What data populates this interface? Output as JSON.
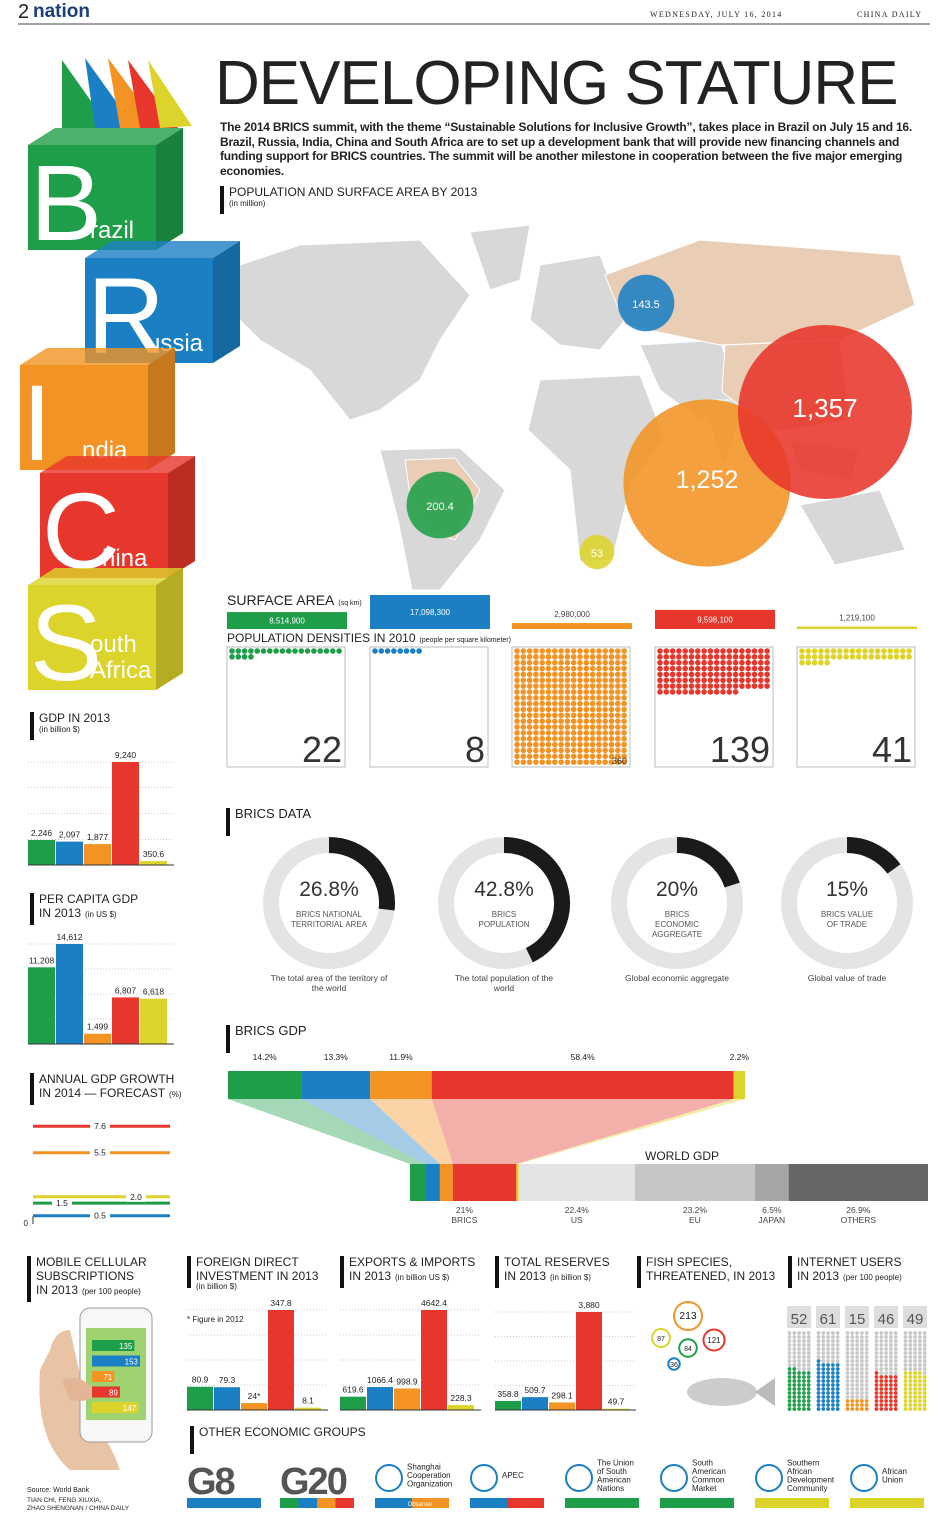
{
  "header": {
    "page": "2",
    "section": "nation",
    "date": "WEDNESDAY, JULY 16, 2014",
    "paper": "CHINA DAILY"
  },
  "colors": [
    "#1f9e49",
    "#1b7fc4",
    "#f39323",
    "#e7362b",
    "#dcd42b"
  ],
  "brics": [
    {
      "letter": "B",
      "rest": [
        "razil"
      ]
    },
    {
      "letter": "R",
      "rest": [
        "ussia"
      ]
    },
    {
      "letter": "I",
      "rest": [
        "ndia"
      ]
    },
    {
      "letter": "C",
      "rest": [
        "hina"
      ]
    },
    {
      "letter": "S",
      "rest": [
        "outh",
        "Africa"
      ]
    }
  ],
  "title": "DEVELOPING STATURE",
  "intro": "The 2014 BRICS summit, with the theme “Sustainable Solutions for Inclusive Growth”, takes place in Brazil on July 15 and 16. Brazil, Russia, India, China and South Africa are to set up a development bank that will provide new financing channels and funding support for BRICS countries. The summit will be another milestone in cooperation between the five major emerging economies.",
  "population": {
    "title": "POPULATION AND SURFACE AREA  BY 2013",
    "unit": "(in million)",
    "values": [
      200.4,
      143.5,
      1252,
      1357,
      53
    ],
    "value_labels": [
      "200.4",
      "143.5",
      "1,252",
      "1,357",
      "53"
    ]
  },
  "surface_area": {
    "title": "SURFACE AREA",
    "unit": "(sq km)",
    "values": [
      8514900,
      17098300,
      2980000,
      9598100,
      1219100
    ],
    "value_labels": [
      "8,514,900",
      "17,098,300",
      "2,980,000",
      "9,598,100",
      "1,219,100"
    ]
  },
  "densities": {
    "title": "POPULATION DENSITIES IN 2010",
    "unit": "(people per square kilometer)",
    "values": [
      22,
      8,
      360,
      139,
      41
    ]
  },
  "gdp": {
    "title": [
      "GDP IN 2013"
    ],
    "unit": "(in billion $)",
    "values": [
      2246,
      2097,
      1877,
      9240,
      350.6
    ],
    "value_labels": [
      "2,246",
      "2,097",
      "1,877",
      "9,240",
      "350.6"
    ]
  },
  "per_capita_gdp": {
    "title": [
      "PER CAPITA GDP",
      "IN 2013"
    ],
    "unit": "(in US $)",
    "values": [
      11208,
      14612,
      1499,
      6807,
      6618
    ],
    "value_labels": [
      "11,208",
      "14,612",
      "1,499",
      "6,807",
      "6,618"
    ]
  },
  "gdp_growth": {
    "title": [
      "ANNUAL GDP GROWTH",
      "IN 2014 — FORECAST"
    ],
    "unit": "(%)",
    "values": [
      1.5,
      0.5,
      5.5,
      7.6,
      2.0
    ],
    "value_labels": [
      "1.5",
      "0.5",
      "5.5",
      "7.6",
      "2.0"
    ],
    "yticks": [
      0
    ]
  },
  "brics_data": {
    "title": "BRICS DATA",
    "items": [
      {
        "value": 26.8,
        "value_label": "26.8%",
        "name": [
          "BRICS NATIONAL",
          "TERRITORIAL AREA"
        ],
        "caption": [
          "The total area of the territory of",
          "the world"
        ]
      },
      {
        "value": 42.8,
        "value_label": "42.8%",
        "name": [
          "BRICS",
          "POPULATION"
        ],
        "caption": [
          "The total population of the",
          "world"
        ]
      },
      {
        "value": 20,
        "value_label": "20%",
        "name": [
          "BRICS",
          "ECONOMIC",
          "AGGREGATE"
        ],
        "caption": [
          "Global economic aggregate"
        ]
      },
      {
        "value": 15,
        "value_label": "15%",
        "name": [
          "BRICS VALUE",
          "OF TRADE"
        ],
        "caption": [
          "Global value of trade"
        ]
      }
    ]
  },
  "brics_gdp": {
    "title": "BRICS GDP",
    "values": [
      14.2,
      13.3,
      11.9,
      58.4,
      2.2
    ],
    "value_labels": [
      "14.2%",
      "13.3%",
      "11.9%",
      "58.4%",
      "2.2%"
    ],
    "world_title": "WORLD GDP",
    "world": {
      "values": [
        21,
        22.4,
        23.2,
        6.5,
        26.9
      ],
      "value_labels": [
        "21%",
        "22.4%",
        "23.2%",
        "6.5%",
        "26.9%"
      ],
      "names": [
        "BRICS",
        "US",
        "EU",
        "JAPAN",
        "OTHERS"
      ]
    }
  },
  "mobile": {
    "title": [
      "MOBILE CELLULAR",
      "SUBSCRIPTIONS",
      "IN 2013"
    ],
    "unit": "(per 100 people)",
    "values": [
      135,
      153,
      71,
      89,
      147
    ]
  },
  "fdi": {
    "title": [
      "FOREIGN DIRECT",
      "INVESTMENT IN 2013"
    ],
    "unit": "(in billion $)",
    "note": "* Figure in 2012",
    "values": [
      80.9,
      79.3,
      24,
      347.8,
      8.1
    ],
    "value_labels": [
      "80.9",
      "79.3",
      "24*",
      "347.8",
      "8.1"
    ]
  },
  "trade": {
    "title": [
      "EXPORTS & IMPORTS",
      "IN 2013"
    ],
    "unit": "(in billion US $)",
    "values": [
      619.6,
      1066.4,
      998.9,
      4642.4,
      228.3
    ]
  },
  "reserves": {
    "title": [
      "TOTAL RESERVES",
      "IN 2013"
    ],
    "unit": "(in billion $)",
    "values": [
      358.8,
      509.7,
      298.1,
      3880,
      49.7
    ],
    "value_labels": [
      "358.8",
      "509.7",
      "298.1",
      "3,880",
      "49.7"
    ]
  },
  "fish": {
    "title": [
      "FISH SPECIES,",
      "THREATENED, IN 2013"
    ],
    "values": [
      84,
      36,
      213,
      121,
      87
    ]
  },
  "internet": {
    "title": [
      "INTERNET USERS",
      "IN 2013"
    ],
    "unit": "(per 100 people)",
    "values": [
      52,
      61,
      15,
      46,
      49
    ]
  },
  "groups": {
    "title": "OTHER ECONOMIC GROUPS",
    "observer": "Observer",
    "items": [
      {
        "name": [
          "G8"
        ]
      },
      {
        "name": [
          "G20"
        ]
      },
      {
        "name": [
          "Shanghai",
          "Cooperation",
          "Organization"
        ]
      },
      {
        "name": [
          "APEC"
        ]
      },
      {
        "name": [
          "The Union",
          "of South",
          "American",
          "Nations"
        ]
      },
      {
        "name": [
          "South",
          "American",
          "Common",
          "Market"
        ]
      },
      {
        "name": [
          "Southern",
          "African",
          "Development",
          "Community"
        ]
      },
      {
        "name": [
          "African",
          "Union"
        ]
      }
    ]
  },
  "source": "Source: World Bank",
  "credit": [
    "TIAN CHI, FENG XIUXIA,",
    "ZHAO SHENGNAN / CHINA DAILY"
  ]
}
